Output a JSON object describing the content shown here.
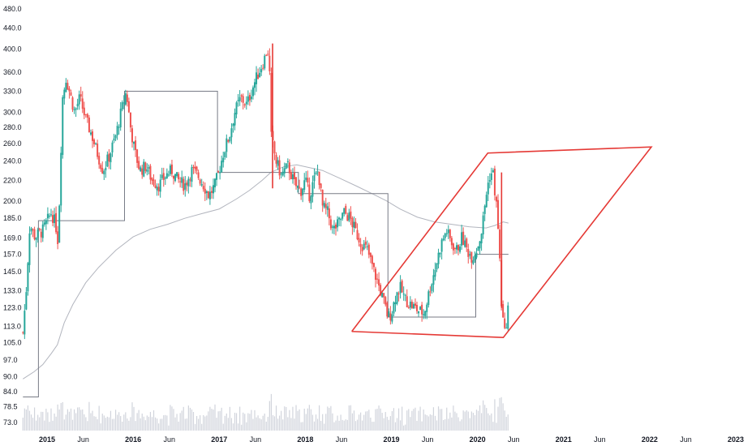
{
  "chart_data": {
    "type": "candlestick",
    "y_scale": "log",
    "ylim": [
      70,
      500
    ],
    "y_ticks": [
      "480.0",
      "440.0",
      "400.0",
      "360.0",
      "330.0",
      "300.0",
      "280.0",
      "260.0",
      "240.0",
      "220.0",
      "200.0",
      "185.0",
      "169.0",
      "157.0",
      "145.0",
      "133.0",
      "123.0",
      "113.0",
      "105.0",
      "97.0",
      "90.0",
      "84.0",
      "78.5",
      "73.0"
    ],
    "x_ticks": [
      {
        "label": "2015",
        "t": 2015.0
      },
      {
        "label": "Jun",
        "t": 2015.42
      },
      {
        "label": "2016",
        "t": 2016.0
      },
      {
        "label": "Jun",
        "t": 2016.42
      },
      {
        "label": "2017",
        "t": 2017.0
      },
      {
        "label": "Jun",
        "t": 2017.42
      },
      {
        "label": "2018",
        "t": 2018.0
      },
      {
        "label": "Jun",
        "t": 2018.42
      },
      {
        "label": "2019",
        "t": 2019.0
      },
      {
        "label": "Jun",
        "t": 2019.42
      },
      {
        "label": "2020",
        "t": 2020.0
      },
      {
        "label": "Jun",
        "t": 2020.42
      },
      {
        "label": "2021",
        "t": 2021.0
      },
      {
        "label": "Jun",
        "t": 2021.42
      },
      {
        "label": "2022",
        "t": 2022.0
      },
      {
        "label": "Jun",
        "t": 2022.42
      },
      {
        "label": "2023",
        "t": 2023.0
      }
    ],
    "xlim": [
      2014.72,
      2023.12
    ],
    "price_path": [
      [
        2014.72,
        110
      ],
      [
        2014.76,
        135
      ],
      [
        2014.8,
        180
      ],
      [
        2014.86,
        170
      ],
      [
        2014.95,
        175
      ],
      [
        2015.05,
        190
      ],
      [
        2015.1,
        180
      ],
      [
        2015.13,
        165
      ],
      [
        2015.15,
        220
      ],
      [
        2015.18,
        320
      ],
      [
        2015.22,
        350
      ],
      [
        2015.26,
        330
      ],
      [
        2015.32,
        300
      ],
      [
        2015.38,
        320
      ],
      [
        2015.45,
        290
      ],
      [
        2015.52,
        270
      ],
      [
        2015.58,
        250
      ],
      [
        2015.65,
        230
      ],
      [
        2015.72,
        245
      ],
      [
        2015.8,
        270
      ],
      [
        2015.86,
        300
      ],
      [
        2015.92,
        330
      ],
      [
        2015.97,
        280
      ],
      [
        2016.02,
        250
      ],
      [
        2016.08,
        230
      ],
      [
        2016.15,
        235
      ],
      [
        2016.22,
        220
      ],
      [
        2016.3,
        215
      ],
      [
        2016.38,
        225
      ],
      [
        2016.45,
        230
      ],
      [
        2016.52,
        220
      ],
      [
        2016.6,
        215
      ],
      [
        2016.68,
        230
      ],
      [
        2016.75,
        225
      ],
      [
        2016.82,
        215
      ],
      [
        2016.88,
        205
      ],
      [
        2016.95,
        215
      ],
      [
        2017.0,
        230
      ],
      [
        2017.05,
        250
      ],
      [
        2017.12,
        270
      ],
      [
        2017.18,
        300
      ],
      [
        2017.25,
        320
      ],
      [
        2017.32,
        310
      ],
      [
        2017.4,
        340
      ],
      [
        2017.46,
        360
      ],
      [
        2017.52,
        380
      ],
      [
        2017.55,
        395
      ],
      [
        2017.58,
        395
      ],
      [
        2017.6,
        270
      ],
      [
        2017.62,
        260
      ],
      [
        2017.66,
        240
      ],
      [
        2017.72,
        225
      ],
      [
        2017.8,
        235
      ],
      [
        2017.88,
        215
      ],
      [
        2017.95,
        210
      ],
      [
        2018.0,
        220
      ],
      [
        2018.05,
        205
      ],
      [
        2018.1,
        220
      ],
      [
        2018.15,
        230
      ],
      [
        2018.2,
        195
      ],
      [
        2018.26,
        190
      ],
      [
        2018.32,
        175
      ],
      [
        2018.38,
        180
      ],
      [
        2018.45,
        190
      ],
      [
        2018.52,
        185
      ],
      [
        2018.58,
        175
      ],
      [
        2018.65,
        165
      ],
      [
        2018.72,
        160
      ],
      [
        2018.8,
        145
      ],
      [
        2018.86,
        135
      ],
      [
        2018.92,
        125
      ],
      [
        2018.96,
        118
      ],
      [
        2019.0,
        120
      ],
      [
        2019.05,
        130
      ],
      [
        2019.1,
        135
      ],
      [
        2019.16,
        128
      ],
      [
        2019.22,
        125
      ],
      [
        2019.3,
        122
      ],
      [
        2019.38,
        120
      ],
      [
        2019.45,
        135
      ],
      [
        2019.52,
        150
      ],
      [
        2019.58,
        165
      ],
      [
        2019.64,
        175
      ],
      [
        2019.7,
        165
      ],
      [
        2019.76,
        160
      ],
      [
        2019.82,
        170
      ],
      [
        2019.88,
        160
      ],
      [
        2019.94,
        155
      ],
      [
        2020.0,
        162
      ],
      [
        2020.05,
        175
      ],
      [
        2020.1,
        205
      ],
      [
        2020.14,
        225
      ],
      [
        2020.18,
        228
      ],
      [
        2020.2,
        210
      ],
      [
        2020.23,
        190
      ],
      [
        2020.26,
        150
      ],
      [
        2020.28,
        123
      ],
      [
        2020.3,
        115
      ],
      [
        2020.32,
        108
      ],
      [
        2020.34,
        118
      ],
      [
        2020.36,
        125
      ]
    ],
    "ma_line": [
      [
        2014.72,
        89
      ],
      [
        2014.85,
        92
      ],
      [
        2014.95,
        95
      ],
      [
        2015.05,
        100
      ],
      [
        2015.12,
        104
      ],
      [
        2015.2,
        115
      ],
      [
        2015.3,
        125
      ],
      [
        2015.45,
        138
      ],
      [
        2015.6,
        148
      ],
      [
        2015.8,
        160
      ],
      [
        2016.0,
        170
      ],
      [
        2016.2,
        176
      ],
      [
        2016.4,
        180
      ],
      [
        2016.6,
        185
      ],
      [
        2016.8,
        189
      ],
      [
        2017.0,
        193
      ],
      [
        2017.2,
        202
      ],
      [
        2017.35,
        210
      ],
      [
        2017.5,
        220
      ],
      [
        2017.6,
        228
      ],
      [
        2017.75,
        234
      ],
      [
        2017.9,
        236
      ],
      [
        2018.05,
        233
      ],
      [
        2018.2,
        230
      ],
      [
        2018.4,
        222
      ],
      [
        2018.6,
        214
      ],
      [
        2018.8,
        206
      ],
      [
        2018.95,
        200
      ],
      [
        2019.1,
        193
      ],
      [
        2019.3,
        186
      ],
      [
        2019.5,
        182
      ],
      [
        2019.7,
        180
      ],
      [
        2019.9,
        178
      ],
      [
        2020.1,
        177
      ],
      [
        2020.2,
        179
      ],
      [
        2020.3,
        182
      ],
      [
        2020.36,
        181
      ]
    ],
    "step_line": [
      [
        2014.72,
        82
      ],
      [
        2014.9,
        82
      ],
      [
        2014.9,
        183
      ],
      [
        2015.9,
        183
      ],
      [
        2015.9,
        330
      ],
      [
        2016.98,
        330
      ],
      [
        2016.98,
        228
      ],
      [
        2017.92,
        228
      ],
      [
        2017.92,
        207
      ],
      [
        2018.96,
        207
      ],
      [
        2018.96,
        118
      ],
      [
        2019.98,
        118
      ],
      [
        2019.98,
        157
      ],
      [
        2020.36,
        157
      ]
    ],
    "drawings": [
      {
        "type": "polyline",
        "color": "#e53935",
        "points": [
          [
            2018.54,
            110.5
          ],
          [
            2020.3,
            107.5
          ],
          [
            2022.02,
            256
          ],
          [
            2020.12,
            249
          ],
          [
            2018.54,
            110.5
          ]
        ]
      },
      {
        "type": "vline",
        "color": "#e53935",
        "t": 2017.62,
        "from": 212,
        "to": 410
      },
      {
        "type": "vline",
        "color": "#e53935",
        "t": 2020.28,
        "from": 123,
        "to": 228
      }
    ],
    "colors": {
      "up": "#26a69a",
      "down": "#ef5350",
      "ma": "#b2b5be",
      "step": "#787b86",
      "drawing": "#e53935",
      "volume": "#d1d4dc"
    }
  }
}
